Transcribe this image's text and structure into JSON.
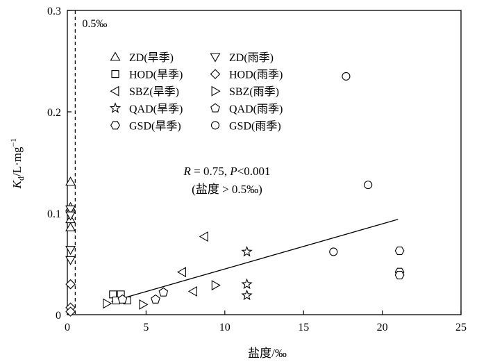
{
  "chart_data": {
    "type": "scatter",
    "xlabel": "盐度/‰",
    "ylabel_main": "K",
    "ylabel_sub": "d",
    "ylabel_rest": "/L·mg",
    "ylabel_sup": "−1",
    "xlim": [
      0,
      25
    ],
    "ylim": [
      0,
      0.3
    ],
    "x_ticks": [
      0,
      5,
      10,
      15,
      20,
      25
    ],
    "x_tick_labels": [
      "0",
      "5",
      "10",
      "15",
      "20",
      "25"
    ],
    "y_ticks": [
      0,
      0.1,
      0.2,
      0.3
    ],
    "y_tick_labels": [
      "0",
      "0.1",
      "0.2",
      "0.3"
    ],
    "grid": false,
    "legend_position": "top-left",
    "threshold": {
      "x": 0.5,
      "label": "0.5‰",
      "style": "dashed"
    },
    "annotation": {
      "r_symbol": "R",
      "r_eq": " = 0.75, ",
      "p_symbol": "P",
      "p_rest": "<0.001",
      "condition": "(盐度 > 0.5‰)"
    },
    "fit_line": {
      "x": [
        2.8,
        21.0
      ],
      "y": [
        0.013,
        0.094
      ]
    },
    "series": [
      {
        "name": "ZD(旱季)",
        "marker": "triangle-up",
        "points": [
          [
            0.2,
            0.131
          ],
          [
            0.2,
            0.106
          ],
          [
            0.2,
            0.094
          ],
          [
            0.2,
            0.086
          ]
        ]
      },
      {
        "name": "ZD(雨季)",
        "marker": "triangle-down",
        "points": [
          [
            0.2,
            0.104
          ],
          [
            0.2,
            0.098
          ],
          [
            0.2,
            0.064
          ],
          [
            0.2,
            0.054
          ]
        ]
      },
      {
        "name": "HOD(旱季)",
        "marker": "square",
        "points": [
          [
            2.9,
            0.02
          ],
          [
            3.4,
            0.02
          ],
          [
            3.1,
            0.014
          ],
          [
            3.8,
            0.014
          ]
        ]
      },
      {
        "name": "HOD(雨季)",
        "marker": "diamond",
        "points": [
          [
            0.2,
            0.03
          ],
          [
            0.2,
            0.007
          ],
          [
            0.2,
            0.003
          ]
        ]
      },
      {
        "name": "SBZ(旱季)",
        "marker": "triangle-left",
        "points": [
          [
            8.7,
            0.077
          ],
          [
            7.3,
            0.042
          ],
          [
            8.0,
            0.023
          ]
        ]
      },
      {
        "name": "SBZ(雨季)",
        "marker": "triangle-right",
        "points": [
          [
            9.4,
            0.029
          ],
          [
            4.8,
            0.01
          ],
          [
            2.5,
            0.011
          ]
        ]
      },
      {
        "name": "QAD(旱季)",
        "marker": "star",
        "points": [
          [
            11.4,
            0.062
          ],
          [
            11.4,
            0.03
          ],
          [
            11.4,
            0.019
          ]
        ]
      },
      {
        "name": "QAD(雨季)",
        "marker": "pentagon",
        "points": [
          [
            6.1,
            0.022
          ],
          [
            5.6,
            0.015
          ],
          [
            3.5,
            0.015
          ]
        ]
      },
      {
        "name": "GSD(旱季)",
        "marker": "hexagon",
        "points": [
          [
            21.1,
            0.063
          ],
          [
            21.1,
            0.042
          ],
          [
            21.1,
            0.039
          ]
        ]
      },
      {
        "name": "GSD(雨季)",
        "marker": "circle",
        "points": [
          [
            17.7,
            0.235
          ],
          [
            19.1,
            0.128
          ],
          [
            16.9,
            0.062
          ]
        ]
      }
    ]
  }
}
